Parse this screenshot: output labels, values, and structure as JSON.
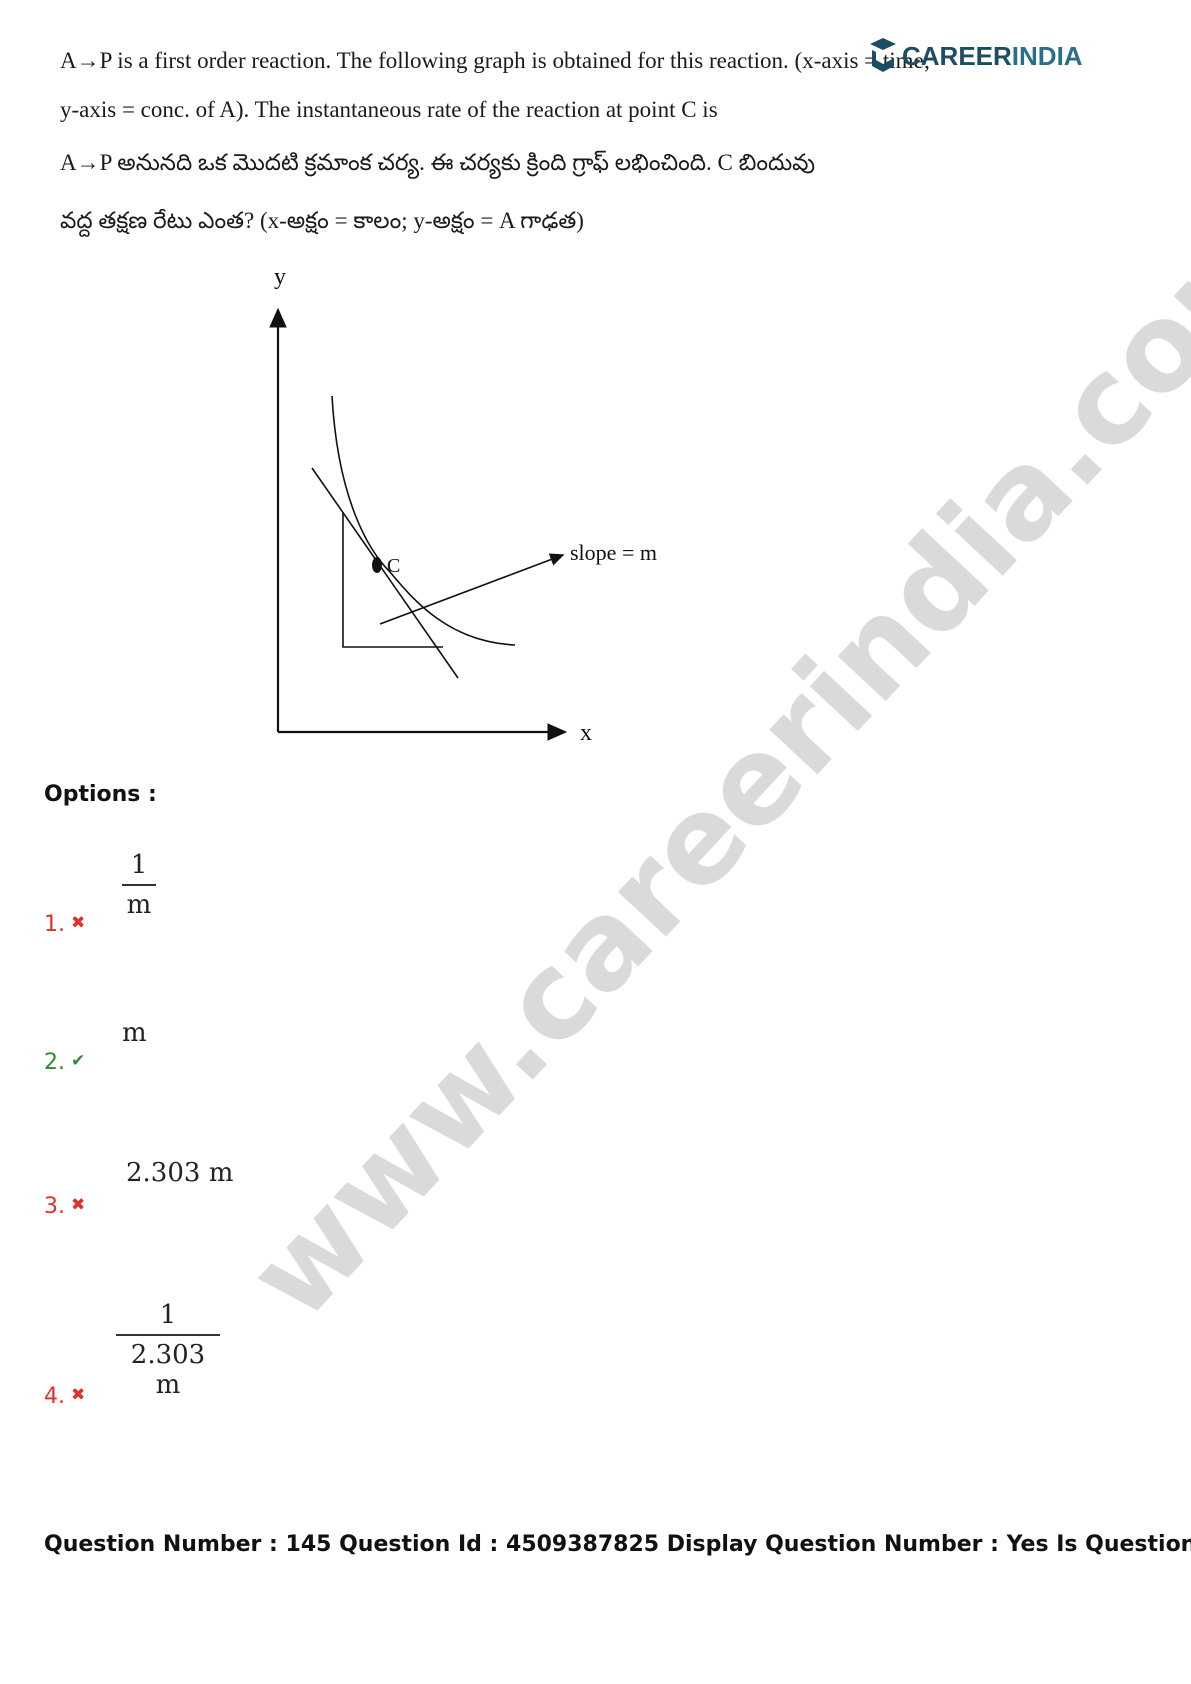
{
  "logo": {
    "text_part1": "CAREER",
    "text_part2": "INDIA"
  },
  "question": {
    "line1": "A→P is a first order reaction. The following graph is obtained for this reaction. (x-axis = time;",
    "line2": "y-axis = conc. of A). The instantaneous rate of the reaction at point C is",
    "line3_te": "A→P అనునది ఒక మొదటి క్రమాంక చర్య. ఈ చర్యకు క్రింది గ్రాఫ్ లభించింది. C బిందువు",
    "line4_te": "వద్ద తక్షణ రేటు ఎంత? (x-అక్షం = కాలం; y-అక్షం = A గాఢత)"
  },
  "graph": {
    "y_label": "y",
    "x_label": "x",
    "point_label": "C",
    "slope_label": "slope = m"
  },
  "options_label": "Options :",
  "options": [
    {
      "number": "1.",
      "status": "wrong",
      "numerator": "1",
      "denominator": "m"
    },
    {
      "number": "2.",
      "status": "correct",
      "value": "m"
    },
    {
      "number": "3.",
      "status": "wrong",
      "value": "2.303 m"
    },
    {
      "number": "4.",
      "status": "wrong",
      "numerator": "1",
      "denominator": "2.303 m"
    }
  ],
  "footer": "Question Number : 145 Question Id : 4509387825 Display Question Number : Yes Is Question",
  "watermark": "www.careerindia.com",
  "colors": {
    "wrong": "#e0302a",
    "correct": "#2e8b2e",
    "logo": "#1c4d63"
  }
}
